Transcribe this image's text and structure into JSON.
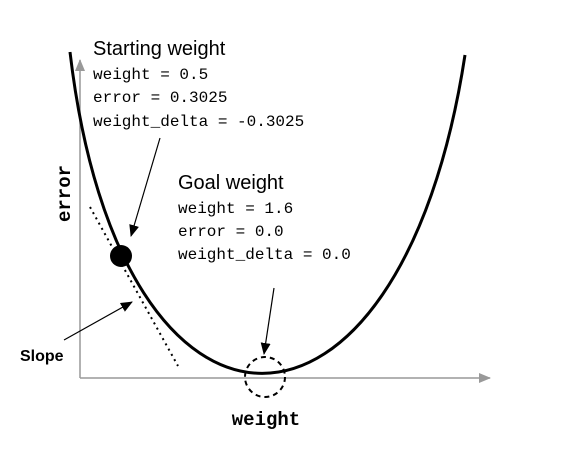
{
  "axes": {
    "y_label": "error",
    "x_label": "weight"
  },
  "starting": {
    "title": "Starting weight",
    "lines": [
      "weight = 0.5",
      "error = 0.3025",
      "weight_delta = -0.3025"
    ]
  },
  "goal": {
    "title": "Goal weight",
    "lines": [
      "weight = 1.6",
      "error = 0.0",
      "weight_delta = 0.0"
    ]
  },
  "slope_label": "Slope",
  "colors": {
    "ink": "#000000",
    "axis": "#999999"
  }
}
